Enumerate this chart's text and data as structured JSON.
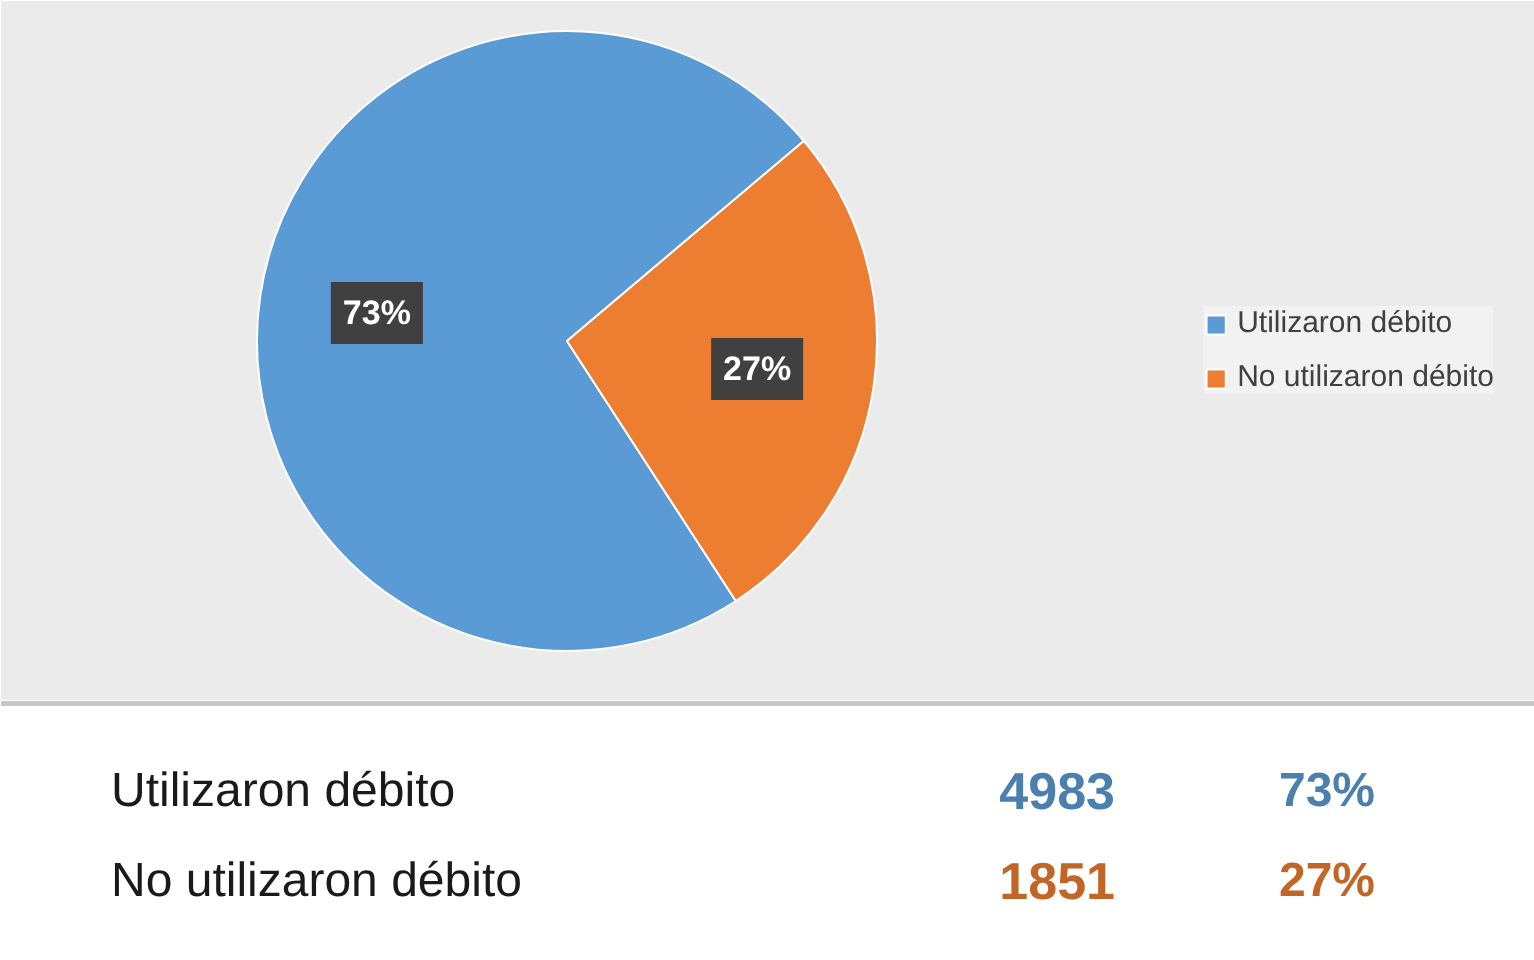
{
  "chart_data": {
    "type": "pie",
    "categories": [
      "Utilizaron débito",
      "No utilizaron débito"
    ],
    "values": [
      73,
      27
    ],
    "colors": [
      "#5b9bd5",
      "#ed7d31"
    ],
    "value_labels": [
      "73%",
      "27%"
    ],
    "annotations": [
      "4983",
      "1851"
    ],
    "legend": "right"
  }
}
